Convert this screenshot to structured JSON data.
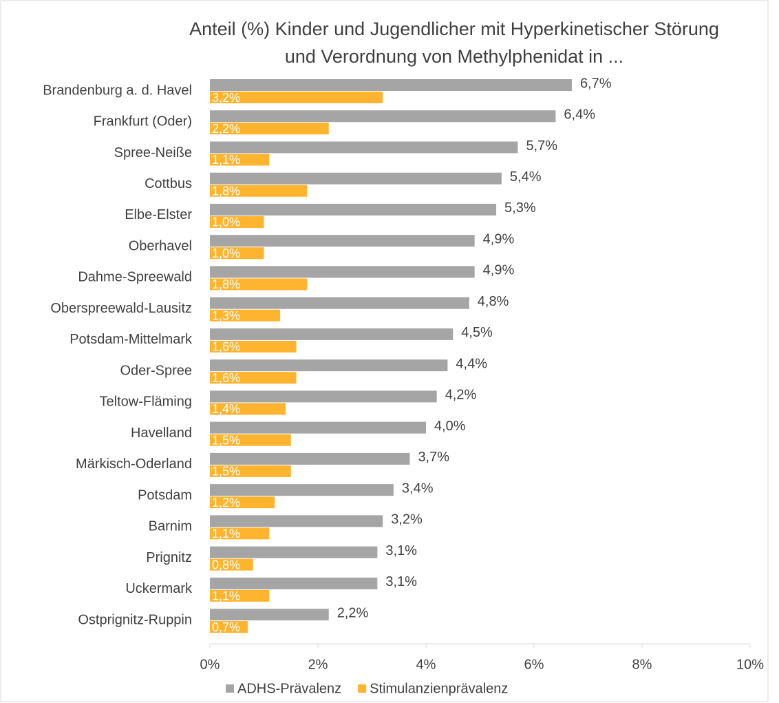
{
  "chart_data": {
    "type": "bar",
    "orientation": "horizontal",
    "title": [
      "Anteil (%) Kinder und Jugendlicher mit Hyperkinetischer Störung",
      "und Verordnung von Methylphenidat in ..."
    ],
    "categories": [
      "Brandenburg a. d. Havel",
      "Frankfurt (Oder)",
      "Spree-Neiße",
      "Cottbus",
      "Elbe-Elster",
      "Oberhavel",
      "Dahme-Spreewald",
      "Oberspreewald-Lausitz",
      "Potsdam-Mittelmark",
      "Oder-Spree",
      "Teltow-Fläming",
      "Havelland",
      "Märkisch-Oderland",
      "Potsdam",
      "Barnim",
      "Prignitz",
      "Uckermark",
      "Ostprignitz-Ruppin"
    ],
    "series": [
      {
        "name": "ADHS-Prävalenz",
        "color": "#a5a5a5",
        "values": [
          6.7,
          6.4,
          5.7,
          5.4,
          5.3,
          4.9,
          4.9,
          4.8,
          4.5,
          4.4,
          4.2,
          4.0,
          3.7,
          3.4,
          3.2,
          3.1,
          3.1,
          2.2
        ],
        "value_labels": [
          "6,7%",
          "6,4%",
          "5,7%",
          "5,4%",
          "5,3%",
          "4,9%",
          "4,9%",
          "4,8%",
          "4,5%",
          "4,4%",
          "4,2%",
          "4,0%",
          "3,7%",
          "3,4%",
          "3,2%",
          "3,1%",
          "3,1%",
          "2,2%"
        ]
      },
      {
        "name": "Stimulanzienprävalenz",
        "color": "#ffb430",
        "values": [
          3.2,
          2.2,
          1.1,
          1.8,
          1.0,
          1.0,
          1.8,
          1.3,
          1.6,
          1.6,
          1.4,
          1.5,
          1.5,
          1.2,
          1.1,
          0.8,
          1.1,
          0.7
        ],
        "value_labels": [
          "3,2%",
          "2,2%",
          "1,1%",
          "1,8%",
          "1,0%",
          "1,0%",
          "1,8%",
          "1,3%",
          "1,6%",
          "1,6%",
          "1,4%",
          "1,5%",
          "1,5%",
          "1,2%",
          "1,1%",
          "0,8%",
          "1,1%",
          "0,7%"
        ]
      }
    ],
    "xlim": [
      0,
      10
    ],
    "xticks": [
      {
        "value": 0,
        "label": "0%"
      },
      {
        "value": 2,
        "label": "2%"
      },
      {
        "value": 4,
        "label": "4%"
      },
      {
        "value": 6,
        "label": "6%"
      },
      {
        "value": 8,
        "label": "8%"
      },
      {
        "value": 10,
        "label": "10%"
      }
    ],
    "legend": "bottom",
    "grid": false
  }
}
